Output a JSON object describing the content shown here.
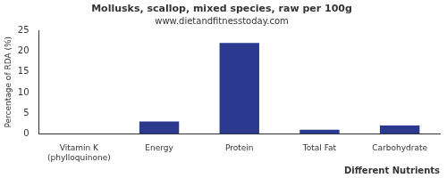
{
  "chart_data": {
    "type": "bar",
    "title": "Mollusks, scallop, mixed species, raw per 100g",
    "subtitle": "www.dietandfitnesstoday.com",
    "x_label": "Different Nutrients",
    "y_label": "Percentage of RDA (%)",
    "categories": [
      "Vitamin K (phylloquinone)",
      "Energy",
      "Protein",
      "Total Fat",
      "Carbohydrate"
    ],
    "values": [
      0,
      3,
      22,
      1,
      2
    ],
    "color": "#2b3a8f",
    "ylim": [
      0,
      25
    ],
    "yticks": [
      0,
      5,
      10,
      15,
      20,
      25
    ],
    "grid": false
  }
}
